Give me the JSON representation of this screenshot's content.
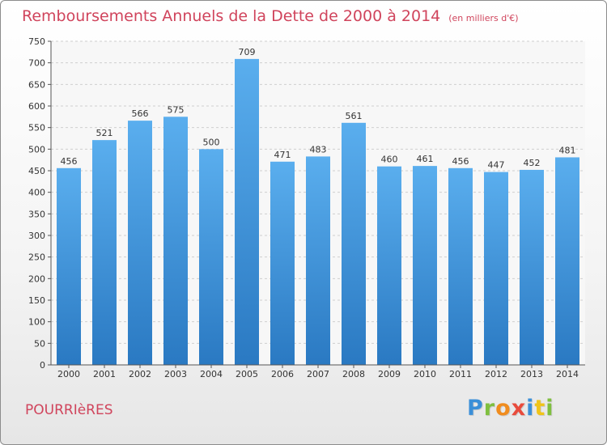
{
  "title": "Remboursements Annuels de la Dette de 2000 à 2014",
  "unit": "(en milliers d'€)",
  "commune": "POURRIèRES",
  "logo": {
    "letters": [
      "P",
      "r",
      "o",
      "x",
      "i",
      "t",
      "i"
    ],
    "colors": [
      "#3b8fd8",
      "#7fbf3f",
      "#f08c1e",
      "#e84b3c",
      "#3b8fd8",
      "#f0c419",
      "#7fbf3f"
    ]
  },
  "colors": {
    "bar": "#4ea3e6",
    "bar_dark": "#2b7bc4",
    "title": "#d0445c"
  },
  "chart_data": {
    "type": "bar",
    "title": "Remboursements Annuels de la Dette de 2000 à 2014",
    "xlabel": "",
    "ylabel": "",
    "categories": [
      "2000",
      "2001",
      "2002",
      "2003",
      "2004",
      "2005",
      "2006",
      "2007",
      "2008",
      "2009",
      "2010",
      "2011",
      "2012",
      "2013",
      "2014"
    ],
    "values": [
      456,
      521,
      566,
      575,
      500,
      709,
      471,
      483,
      561,
      460,
      461,
      456,
      447,
      452,
      481
    ],
    "ylim": [
      0,
      750
    ],
    "yticks": [
      0,
      50,
      100,
      150,
      200,
      250,
      300,
      350,
      400,
      450,
      500,
      550,
      600,
      650,
      700,
      750
    ],
    "grid": true,
    "legend": "none"
  }
}
